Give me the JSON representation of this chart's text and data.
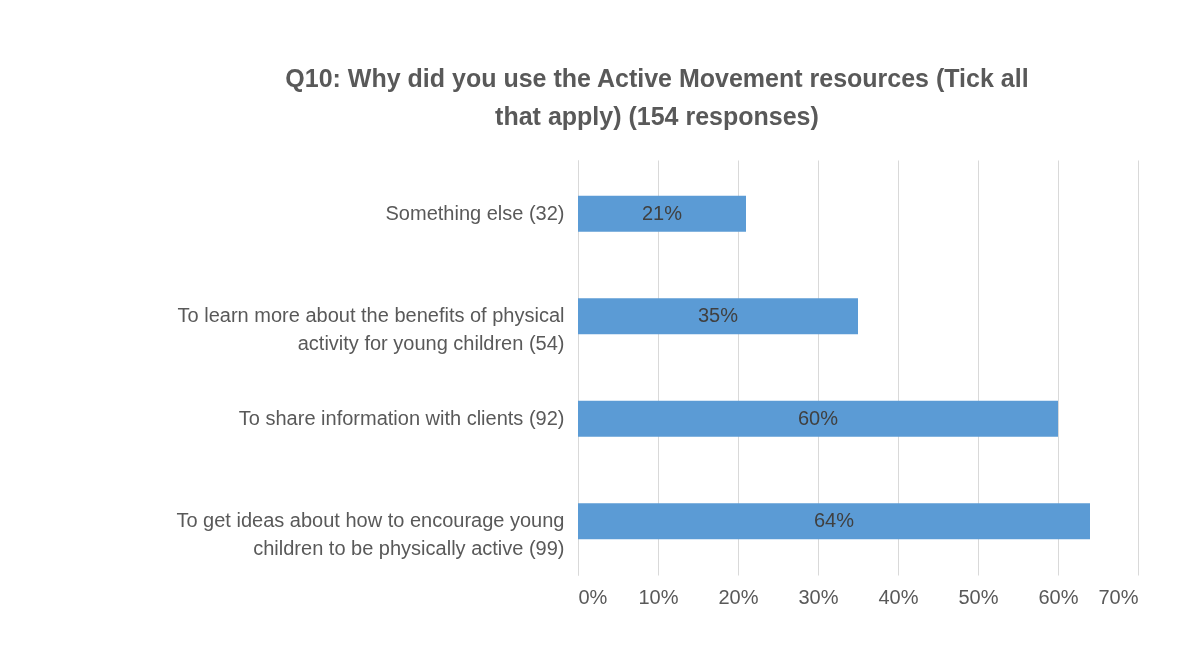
{
  "chart_data": {
    "type": "bar",
    "orientation": "horizontal",
    "title": "Q10: Why did you use the Active Movement resources (Tick all that apply) (154 responses)",
    "categories": [
      "Something else (32)",
      "To learn more about the benefits of physical activity for young children (54)",
      "To share information with clients (92)",
      "To get ideas about how to encourage young children to be physically active (99)"
    ],
    "values": [
      21,
      35,
      60,
      64
    ],
    "value_labels": [
      "21%",
      "35%",
      "60%",
      "64%"
    ],
    "color": "#5b9bd5",
    "xlim": [
      0,
      70
    ],
    "xticks": [
      {
        "value": 0,
        "label": "0%"
      },
      {
        "value": 10,
        "label": "10%"
      },
      {
        "value": 20,
        "label": "20%"
      },
      {
        "value": 30,
        "label": "30%"
      },
      {
        "value": 40,
        "label": "40%"
      },
      {
        "value": 50,
        "label": "50%"
      },
      {
        "value": 60,
        "label": "60%"
      },
      {
        "value": 70,
        "label": "70%"
      }
    ],
    "grid": "x"
  }
}
